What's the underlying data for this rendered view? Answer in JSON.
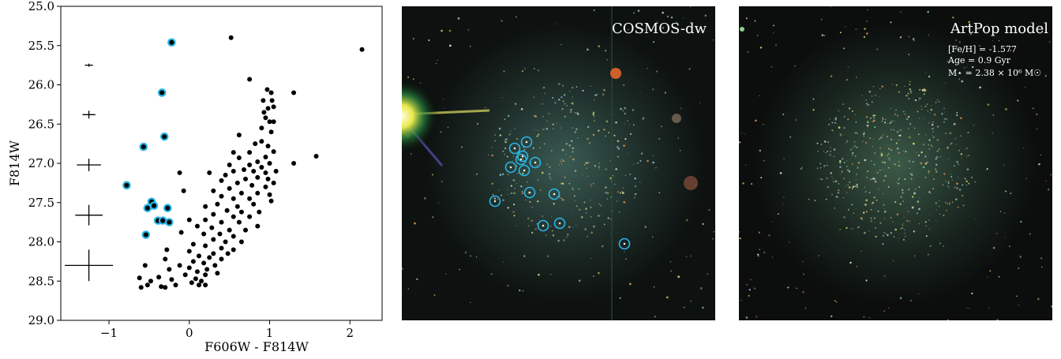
{
  "chart_data": {
    "type": "scatter",
    "xlabel": "F606W - F814W",
    "ylabel": "F814W",
    "xlim": [
      -1.6,
      2.4
    ],
    "ylim": [
      25,
      29
    ],
    "y_inverted": true,
    "xticks": [
      {
        "value": -1,
        "label": "−1"
      },
      0,
      1,
      2
    ],
    "yticks": [
      {
        "value": 25,
        "label": "25.0"
      },
      25.5,
      {
        "value": 26,
        "label": "26.0"
      },
      26.5,
      {
        "value": 27,
        "label": "27.0"
      },
      27.5,
      {
        "value": 28,
        "label": "28.0"
      },
      28.5,
      {
        "value": 29,
        "label": "29.0"
      }
    ],
    "series": [
      {
        "color": "#000000",
        "x": [
          0.52,
          2.15,
          0.75,
          1.3,
          0.92,
          0.97,
          1.02,
          1.03,
          0.93,
          0.98,
          1.05,
          0.95,
          1.0,
          1.05,
          0.9,
          1.02,
          0.62,
          0.9,
          0.82,
          0.98,
          0.55,
          0.75,
          1.05,
          0.62,
          0.95,
          1.58,
          0.5,
          0.85,
          0.75,
          0.9,
          1.0,
          1.3,
          0.55,
          0.68,
          0.8,
          0.95,
          1.08,
          -0.12,
          0.25,
          0.45,
          0.7,
          0.85,
          0.98,
          0.4,
          0.6,
          0.78,
          0.95,
          1.05,
          -0.07,
          0.3,
          0.5,
          0.65,
          0.85,
          1.0,
          0.4,
          0.55,
          0.75,
          1.02,
          0.2,
          0.35,
          0.6,
          0.8,
          0.47,
          0.65,
          0.87,
          0.3,
          0.55,
          0.75,
          0.0,
          0.2,
          0.4,
          0.62,
          0.85,
          0.1,
          0.28,
          0.5,
          0.7,
          -0.1,
          0.18,
          0.38,
          0.55,
          0.3,
          0.45,
          0.65,
          0.05,
          0.2,
          0.4,
          0.55,
          -0.28,
          0.0,
          0.3,
          0.48,
          0.12,
          0.25,
          0.4,
          -0.3,
          0.05,
          0.18,
          0.32,
          -0.12,
          0.0,
          0.22,
          -0.55,
          -0.25,
          0.1,
          0.35,
          -0.05,
          0.2,
          -0.38,
          -0.62,
          0.08,
          -0.48,
          -0.22,
          0.15,
          -0.52,
          -0.35,
          -0.3,
          0.2,
          0.12,
          -0.17,
          -0.6,
          0.03
        ],
        "y": [
          25.4,
          25.55,
          25.93,
          26.1,
          26.2,
          26.06,
          26.1,
          26.2,
          26.35,
          26.3,
          26.28,
          26.42,
          26.47,
          26.47,
          26.55,
          26.6,
          26.64,
          26.72,
          26.75,
          26.78,
          26.86,
          26.86,
          26.85,
          26.93,
          26.92,
          26.91,
          27.02,
          26.98,
          27.02,
          27.05,
          27.0,
          27.0,
          27.1,
          27.08,
          27.1,
          27.12,
          27.1,
          27.12,
          27.12,
          27.15,
          27.2,
          27.18,
          27.2,
          27.22,
          27.25,
          27.28,
          27.3,
          27.25,
          27.35,
          27.35,
          27.32,
          27.38,
          27.38,
          27.4,
          27.42,
          27.45,
          27.45,
          27.48,
          27.55,
          27.52,
          27.55,
          27.52,
          27.6,
          27.62,
          27.62,
          27.65,
          27.68,
          27.68,
          27.72,
          27.72,
          27.75,
          27.75,
          27.8,
          27.8,
          27.82,
          27.85,
          27.85,
          27.88,
          27.9,
          27.9,
          27.93,
          27.97,
          28.0,
          28.0,
          28.03,
          28.05,
          28.08,
          28.1,
          28.1,
          28.12,
          28.15,
          28.15,
          28.18,
          28.2,
          28.22,
          28.22,
          28.25,
          28.27,
          28.3,
          28.3,
          28.33,
          28.35,
          28.3,
          28.35,
          28.38,
          28.4,
          28.42,
          28.42,
          28.45,
          28.46,
          28.47,
          28.5,
          28.48,
          28.5,
          28.55,
          28.57,
          28.58,
          28.55,
          28.55,
          28.55,
          28.58,
          28.52
        ]
      },
      {
        "color": "#29b6e6",
        "x": [
          -0.22,
          -0.34,
          -0.31,
          -0.57,
          -0.78,
          -0.47,
          -0.52,
          -0.44,
          -0.27,
          -0.39,
          -0.33,
          -0.25,
          -0.54
        ],
        "y": [
          25.46,
          26.1,
          26.66,
          26.79,
          27.28,
          27.49,
          27.57,
          27.54,
          27.57,
          27.73,
          27.73,
          27.75,
          27.91
        ]
      }
    ],
    "errorbars": {
      "color": "#000000",
      "x": [
        -1.25,
        -1.25,
        -1.25,
        -1.25,
        -1.25
      ],
      "y": [
        25.75,
        26.38,
        27.02,
        27.66,
        28.3
      ],
      "xerr": [
        0.05,
        0.08,
        0.15,
        0.17,
        0.3
      ],
      "yerr": [
        0.02,
        0.05,
        0.08,
        0.13,
        0.2
      ]
    }
  },
  "panels": [
    {
      "title": "COSMOS-dw"
    },
    {
      "title": "ArtPop model",
      "annotations": [
        "[Fe/H] = -1.577",
        "Age = 0.9 Gyr",
        "M⋆ = 2.38 × 10⁶ M☉"
      ]
    }
  ]
}
